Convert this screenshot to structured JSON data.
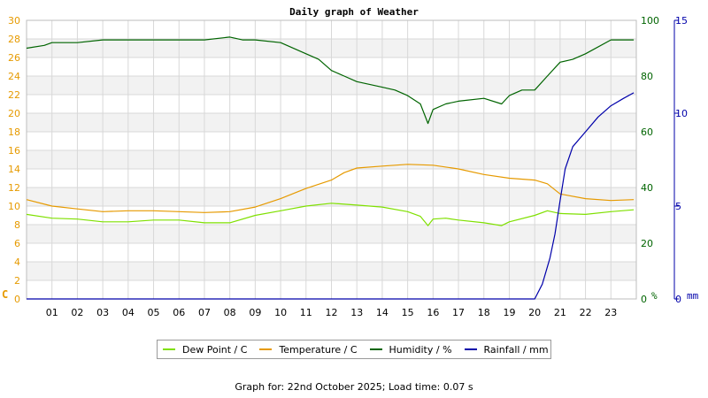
{
  "chart_data": {
    "type": "line",
    "title": "Daily graph of Weather",
    "x_ticks": [
      "01",
      "02",
      "03",
      "04",
      "05",
      "06",
      "07",
      "08",
      "09",
      "10",
      "11",
      "12",
      "13",
      "14",
      "15",
      "16",
      "17",
      "18",
      "19",
      "20",
      "21",
      "22",
      "23"
    ],
    "xlim": [
      0,
      24
    ],
    "axes": {
      "left": {
        "unit_label": "C",
        "ylim": [
          0,
          30
        ],
        "ticks": [
          0,
          2,
          4,
          6,
          8,
          10,
          12,
          14,
          16,
          18,
          20,
          22,
          24,
          26,
          28,
          30
        ],
        "color": "#e69a00"
      },
      "right_humidity": {
        "unit_label": "%",
        "ylim": [
          0,
          100
        ],
        "ticks": [
          0,
          20,
          40,
          60,
          80,
          100
        ],
        "color": "#006400"
      },
      "right_rain": {
        "unit_label": "mm",
        "ylim": [
          0,
          15
        ],
        "ticks": [
          0,
          5,
          10,
          15
        ],
        "color": "#0000aa"
      }
    },
    "grid": true,
    "legend_position": "bottom",
    "series": [
      {
        "name": "Dew Point / C",
        "axis": "left",
        "color": "#7fe000",
        "x": [
          0,
          1,
          2,
          3,
          4,
          5,
          6,
          7,
          8,
          9,
          10,
          11,
          12,
          13,
          14,
          15,
          15.5,
          15.8,
          16,
          16.5,
          17,
          18,
          18.7,
          19,
          20,
          20.5,
          21,
          22,
          23,
          23.9
        ],
        "y": [
          9.1,
          8.7,
          8.6,
          8.3,
          8.3,
          8.5,
          8.5,
          8.2,
          8.2,
          9.0,
          9.5,
          10.0,
          10.3,
          10.1,
          9.9,
          9.4,
          8.9,
          7.9,
          8.6,
          8.7,
          8.5,
          8.2,
          7.9,
          8.3,
          9.0,
          9.5,
          9.2,
          9.1,
          9.4,
          9.6
        ]
      },
      {
        "name": "Temperature / C",
        "axis": "left",
        "color": "#e69a00",
        "x": [
          0,
          1,
          2,
          3,
          4,
          5,
          6,
          7,
          8,
          9,
          10,
          11,
          12,
          12.5,
          13,
          14,
          15,
          16,
          17,
          18,
          19,
          20,
          20.5,
          21,
          22,
          23,
          23.9
        ],
        "y": [
          10.7,
          10.0,
          9.7,
          9.4,
          9.5,
          9.5,
          9.4,
          9.3,
          9.4,
          9.9,
          10.8,
          11.9,
          12.8,
          13.6,
          14.1,
          14.3,
          14.5,
          14.4,
          14.0,
          13.4,
          13.0,
          12.8,
          12.4,
          11.3,
          10.8,
          10.6,
          10.7
        ]
      },
      {
        "name": "Humidity / %",
        "axis": "right_humidity",
        "color": "#006400",
        "x": [
          0,
          0.7,
          1,
          2,
          3,
          4,
          5,
          6,
          7,
          8,
          8.5,
          9,
          10,
          11,
          11.5,
          12,
          12.5,
          13,
          13.5,
          14,
          14.5,
          15,
          15.5,
          15.8,
          16,
          16.5,
          17,
          18,
          18.7,
          19,
          19.5,
          20,
          20.5,
          21,
          21.5,
          22,
          23,
          23.9
        ],
        "y": [
          90,
          91,
          92,
          92,
          93,
          93,
          93,
          93,
          93,
          94,
          93,
          93,
          92,
          88,
          86,
          82,
          80,
          78,
          77,
          76,
          75,
          73,
          70,
          63,
          68,
          70,
          71,
          72,
          70,
          73,
          75,
          75,
          80,
          85,
          86,
          88,
          93,
          93
        ]
      },
      {
        "name": "Rainfall / mm",
        "axis": "right_rain",
        "color": "#0000aa",
        "x": [
          0,
          20,
          20.3,
          20.6,
          20.8,
          21,
          21.2,
          21.5,
          22,
          22.5,
          23,
          23.5,
          23.9
        ],
        "y": [
          0,
          0,
          0.8,
          2.2,
          3.5,
          5.3,
          7.0,
          8.2,
          9.0,
          9.8,
          10.4,
          10.8,
          11.1
        ]
      }
    ]
  },
  "footer": {
    "label": "Graph for:",
    "date": "22nd October 2025",
    "load_label": "Load time:",
    "load_time": "0.07 s"
  }
}
